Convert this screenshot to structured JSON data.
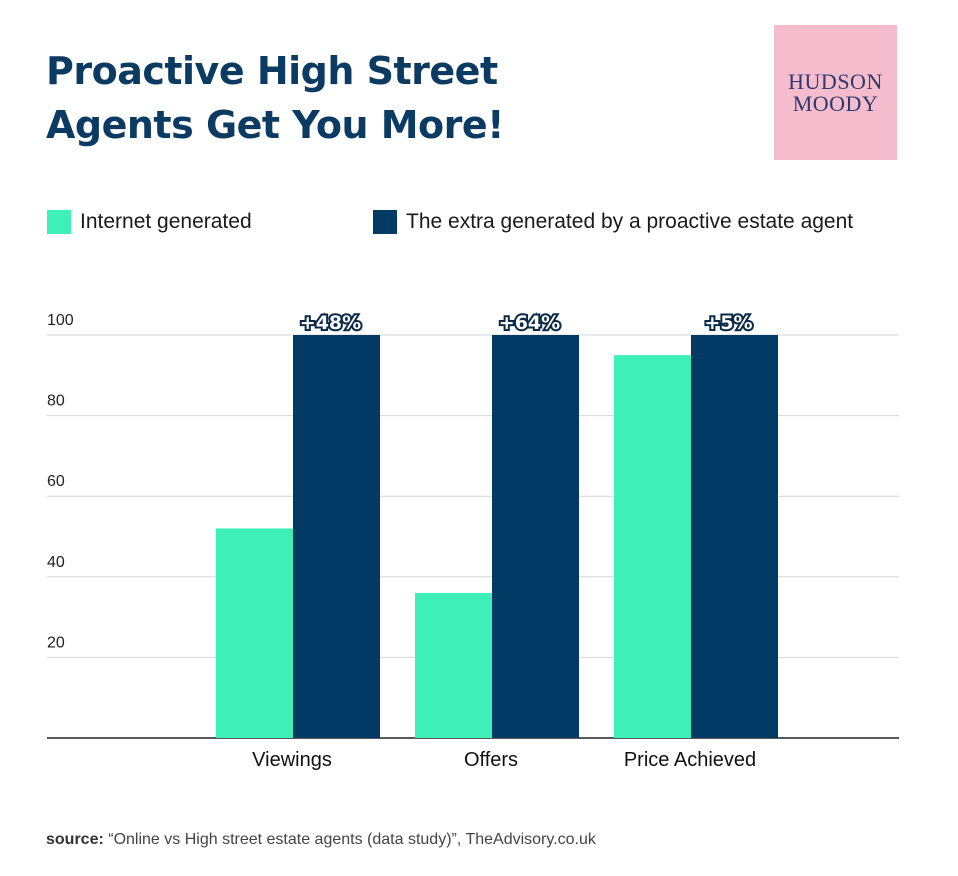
{
  "title": {
    "line1": "Proactive High Street",
    "line2": "Agents Get You More!"
  },
  "logo": {
    "line1": "HUDSON",
    "line2": "MOODY",
    "background": "#f4bccd"
  },
  "colors": {
    "internet": "#3ef0b8",
    "proactive": "#023a66",
    "title": "#0b3b63"
  },
  "source": {
    "prefix": "source:",
    "text": " “Online vs High street estate agents (data study)”, TheAdvisory.co.uk"
  },
  "chart_data": {
    "type": "bar",
    "categories": [
      "Viewings",
      "Offers",
      "Price Achieved"
    ],
    "series": [
      {
        "name": "Internet generated",
        "values": [
          52,
          36,
          95
        ],
        "color": "#3ef0b8"
      },
      {
        "name": "The extra generated by a proactive estate agent",
        "values": [
          100,
          100,
          100
        ],
        "color": "#023a66"
      }
    ],
    "data_labels": [
      "+48%",
      "+64%",
      "+5%"
    ],
    "yticks": [
      20,
      40,
      60,
      80,
      100
    ],
    "ylim": [
      0,
      100
    ],
    "grid": true,
    "legend": "top-left"
  }
}
